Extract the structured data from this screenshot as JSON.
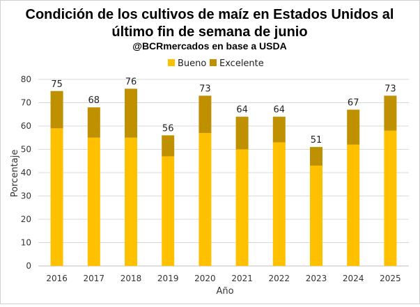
{
  "chart_data": {
    "type": "bar",
    "stacked": true,
    "title_line1": "Condición de los cultivos de maíz en Estados Unidos al",
    "title_line2": "último fin de semana de junio",
    "subtitle": "@BCRmercados en base a USDA",
    "xlabel": "Año",
    "ylabel": "Porcentaje",
    "ylim": [
      0,
      80
    ],
    "yticks": [
      0,
      10,
      20,
      30,
      40,
      50,
      60,
      70,
      80
    ],
    "grid": true,
    "legend_position": "top",
    "categories": [
      "2016",
      "2017",
      "2018",
      "2019",
      "2020",
      "2021",
      "2022",
      "2023",
      "2024",
      "2025"
    ],
    "series": [
      {
        "name": "Bueno",
        "color": "#FFC000",
        "values": [
          59,
          55,
          55,
          47,
          57,
          50,
          53,
          43,
          52,
          58
        ]
      },
      {
        "name": "Excelente",
        "color": "#BF9000",
        "values": [
          16,
          13,
          21,
          9,
          16,
          14,
          11,
          8,
          15,
          15
        ]
      }
    ],
    "totals": [
      75,
      68,
      76,
      56,
      73,
      64,
      64,
      51,
      67,
      73
    ]
  }
}
